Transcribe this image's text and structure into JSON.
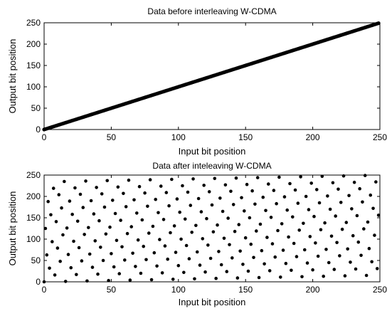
{
  "chart_data": [
    {
      "type": "scatter",
      "title": "Data before interleaving W-CDMA",
      "xlabel": "Input bit position",
      "ylabel": "Output bit position",
      "xlim": [
        0,
        250
      ],
      "ylim": [
        0,
        250
      ],
      "xticks": [
        "0",
        "50",
        "100",
        "150",
        "200",
        "250"
      ],
      "yticks": [
        "0",
        "50",
        "100",
        "150",
        "200",
        "250"
      ],
      "grid": false,
      "marker_color": "#000000",
      "series": [
        {
          "n_points": 250,
          "x_start": 0,
          "x_step": 1,
          "y_equals_x": true
        }
      ]
    },
    {
      "type": "scatter",
      "title": "Data after inteleaving W-CDMA",
      "xlabel": "Input bit position",
      "ylabel": "Output bit position",
      "xlim": [
        0,
        250
      ],
      "ylim": [
        0,
        250
      ],
      "xticks": [
        "0",
        "50",
        "100",
        "150",
        "200",
        "250"
      ],
      "yticks": [
        "0",
        "50",
        "100",
        "150",
        "200",
        "250"
      ],
      "grid": false,
      "marker_color": "#000000",
      "series": [
        {
          "n_points": 250,
          "interleaver": "W-CDMA block interleaver, 16 columns",
          "column_permutation": [
            0,
            8,
            4,
            12,
            2,
            10,
            6,
            14,
            1,
            9,
            5,
            13,
            3,
            11,
            7,
            15
          ]
        }
      ]
    }
  ]
}
